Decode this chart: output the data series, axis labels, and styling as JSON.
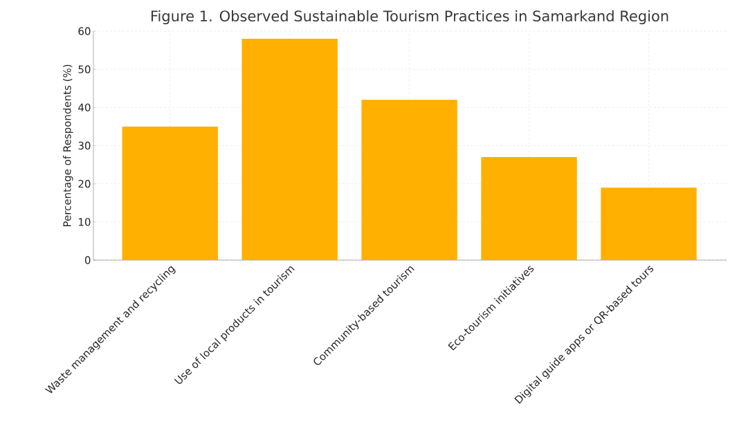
{
  "chart_data": {
    "type": "bar",
    "title": "Figure 1. Observed Sustainable Tourism Practices in Samarkand Region",
    "ylabel": "Percentage of Respondents (%)",
    "categories": [
      "Waste management and recycling",
      "Use of local products in tourism",
      "Community-based tourism",
      "Eco-tourism initiatives",
      "Digital guide apps or QR-based tours"
    ],
    "values": [
      35,
      58,
      42,
      27,
      19
    ],
    "color": "#ffb000",
    "ylim": [
      0,
      60
    ],
    "yticks": [
      0,
      10,
      20,
      30,
      40,
      50,
      60
    ],
    "grid": true
  }
}
